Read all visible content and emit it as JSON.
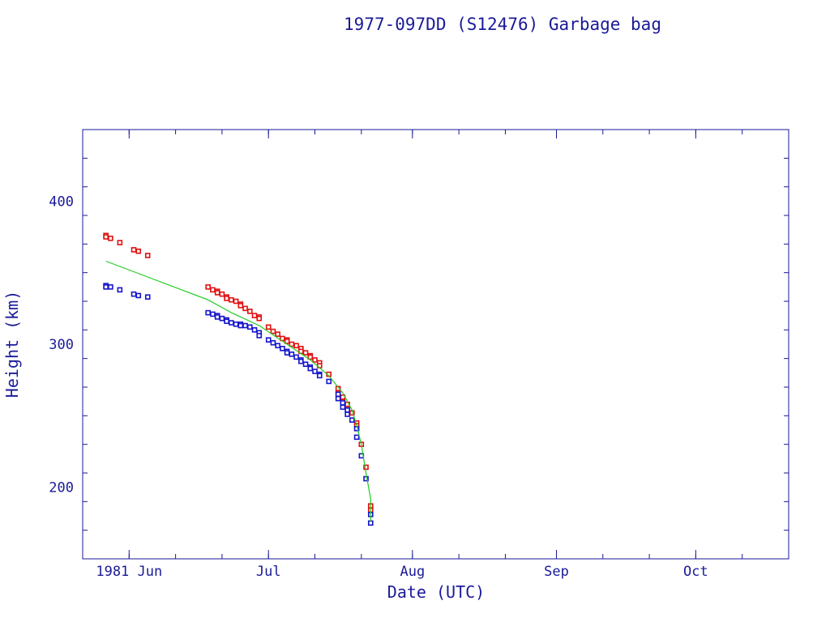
{
  "chart_data": {
    "type": "scatter",
    "title": "1977-097DD (S12476) Garbage bag",
    "xlabel": "Date (UTC)",
    "ylabel": "Height (km)",
    "xlim": [
      "1981-05-22",
      "1981-10-21"
    ],
    "ylim": [
      150,
      450
    ],
    "x_ticks": [
      {
        "date": "1981-06-01",
        "label": "1981 Jun"
      },
      {
        "date": "1981-07-01",
        "label": "Jul"
      },
      {
        "date": "1981-08-01",
        "label": "Aug"
      },
      {
        "date": "1981-09-01",
        "label": "Sep"
      },
      {
        "date": "1981-10-01",
        "label": "Oct"
      }
    ],
    "y_ticks": [
      200,
      300,
      400
    ],
    "grid": false,
    "colors": {
      "apogee": "#e01010",
      "perigee": "#1515cc",
      "mean": "#22cc22",
      "axes": "#1a1a99"
    },
    "series": [
      {
        "role": "apogee",
        "marker": "square",
        "points": [
          [
            "1981-05-27",
            376
          ],
          [
            "1981-05-27",
            375
          ],
          [
            "1981-05-28",
            374
          ],
          [
            "1981-05-30",
            371
          ],
          [
            "1981-06-02",
            366
          ],
          [
            "1981-06-03",
            365
          ],
          [
            "1981-06-05",
            362
          ],
          [
            "1981-06-18",
            340
          ],
          [
            "1981-06-19",
            338
          ],
          [
            "1981-06-20",
            337
          ],
          [
            "1981-06-20",
            336
          ],
          [
            "1981-06-21",
            335
          ],
          [
            "1981-06-22",
            333
          ],
          [
            "1981-06-22",
            332
          ],
          [
            "1981-06-23",
            331
          ],
          [
            "1981-06-24",
            330
          ],
          [
            "1981-06-25",
            328
          ],
          [
            "1981-06-25",
            327
          ],
          [
            "1981-06-26",
            325
          ],
          [
            "1981-06-27",
            323
          ],
          [
            "1981-06-28",
            320
          ],
          [
            "1981-06-29",
            319
          ],
          [
            "1981-06-29",
            318
          ],
          [
            "1981-07-01",
            312
          ],
          [
            "1981-07-02",
            309
          ],
          [
            "1981-07-03",
            307
          ],
          [
            "1981-07-04",
            304
          ],
          [
            "1981-07-05",
            303
          ],
          [
            "1981-07-05",
            302
          ],
          [
            "1981-07-06",
            300
          ],
          [
            "1981-07-07",
            299
          ],
          [
            "1981-07-08",
            297
          ],
          [
            "1981-07-08",
            295
          ],
          [
            "1981-07-09",
            294
          ],
          [
            "1981-07-10",
            292
          ],
          [
            "1981-07-10",
            291
          ],
          [
            "1981-07-11",
            289
          ],
          [
            "1981-07-12",
            287
          ],
          [
            "1981-07-12",
            285
          ],
          [
            "1981-07-14",
            279
          ],
          [
            "1981-07-16",
            269
          ],
          [
            "1981-07-16",
            266
          ],
          [
            "1981-07-17",
            263
          ],
          [
            "1981-07-17",
            260
          ],
          [
            "1981-07-18",
            258
          ],
          [
            "1981-07-18",
            255
          ],
          [
            "1981-07-19",
            252
          ],
          [
            "1981-07-20",
            245
          ],
          [
            "1981-07-20",
            243
          ],
          [
            "1981-07-21",
            230
          ],
          [
            "1981-07-22",
            214
          ],
          [
            "1981-07-23",
            187
          ],
          [
            "1981-07-23",
            184
          ]
        ]
      },
      {
        "role": "perigee",
        "marker": "square",
        "points": [
          [
            "1981-05-27",
            341
          ],
          [
            "1981-05-27",
            340
          ],
          [
            "1981-05-28",
            340
          ],
          [
            "1981-05-30",
            338
          ],
          [
            "1981-06-02",
            335
          ],
          [
            "1981-06-03",
            334
          ],
          [
            "1981-06-05",
            333
          ],
          [
            "1981-06-18",
            322
          ],
          [
            "1981-06-19",
            321
          ],
          [
            "1981-06-20",
            320
          ],
          [
            "1981-06-20",
            319
          ],
          [
            "1981-06-21",
            318
          ],
          [
            "1981-06-22",
            317
          ],
          [
            "1981-06-22",
            316
          ],
          [
            "1981-06-23",
            315
          ],
          [
            "1981-06-24",
            314
          ],
          [
            "1981-06-25",
            314
          ],
          [
            "1981-06-25",
            313
          ],
          [
            "1981-06-26",
            313
          ],
          [
            "1981-06-27",
            312
          ],
          [
            "1981-06-28",
            310
          ],
          [
            "1981-06-29",
            308
          ],
          [
            "1981-06-29",
            306
          ],
          [
            "1981-07-01",
            303
          ],
          [
            "1981-07-02",
            301
          ],
          [
            "1981-07-03",
            299
          ],
          [
            "1981-07-04",
            297
          ],
          [
            "1981-07-05",
            295
          ],
          [
            "1981-07-05",
            294
          ],
          [
            "1981-07-06",
            293
          ],
          [
            "1981-07-07",
            291
          ],
          [
            "1981-07-08",
            289
          ],
          [
            "1981-07-08",
            288
          ],
          [
            "1981-07-09",
            286
          ],
          [
            "1981-07-10",
            284
          ],
          [
            "1981-07-10",
            283
          ],
          [
            "1981-07-11",
            281
          ],
          [
            "1981-07-12",
            279
          ],
          [
            "1981-07-12",
            278
          ],
          [
            "1981-07-14",
            274
          ],
          [
            "1981-07-16",
            265
          ],
          [
            "1981-07-16",
            262
          ],
          [
            "1981-07-17",
            259
          ],
          [
            "1981-07-17",
            256
          ],
          [
            "1981-07-18",
            254
          ],
          [
            "1981-07-18",
            251
          ],
          [
            "1981-07-19",
            247
          ],
          [
            "1981-07-20",
            241
          ],
          [
            "1981-07-20",
            235
          ],
          [
            "1981-07-21",
            222
          ],
          [
            "1981-07-22",
            206
          ],
          [
            "1981-07-23",
            181
          ],
          [
            "1981-07-23",
            175
          ]
        ]
      },
      {
        "role": "mean",
        "marker": "line",
        "points": [
          [
            "1981-05-27",
            358
          ],
          [
            "1981-06-05",
            347
          ],
          [
            "1981-06-18",
            331
          ],
          [
            "1981-06-23",
            322
          ],
          [
            "1981-06-29",
            313
          ],
          [
            "1981-07-05",
            300
          ],
          [
            "1981-07-10",
            289
          ],
          [
            "1981-07-14",
            278
          ],
          [
            "1981-07-17",
            266
          ],
          [
            "1981-07-19",
            254
          ],
          [
            "1981-07-20",
            243
          ],
          [
            "1981-07-21",
            230
          ],
          [
            "1981-07-22",
            210
          ],
          [
            "1981-07-23",
            192
          ],
          [
            "1981-07-23",
            176
          ]
        ]
      }
    ]
  }
}
